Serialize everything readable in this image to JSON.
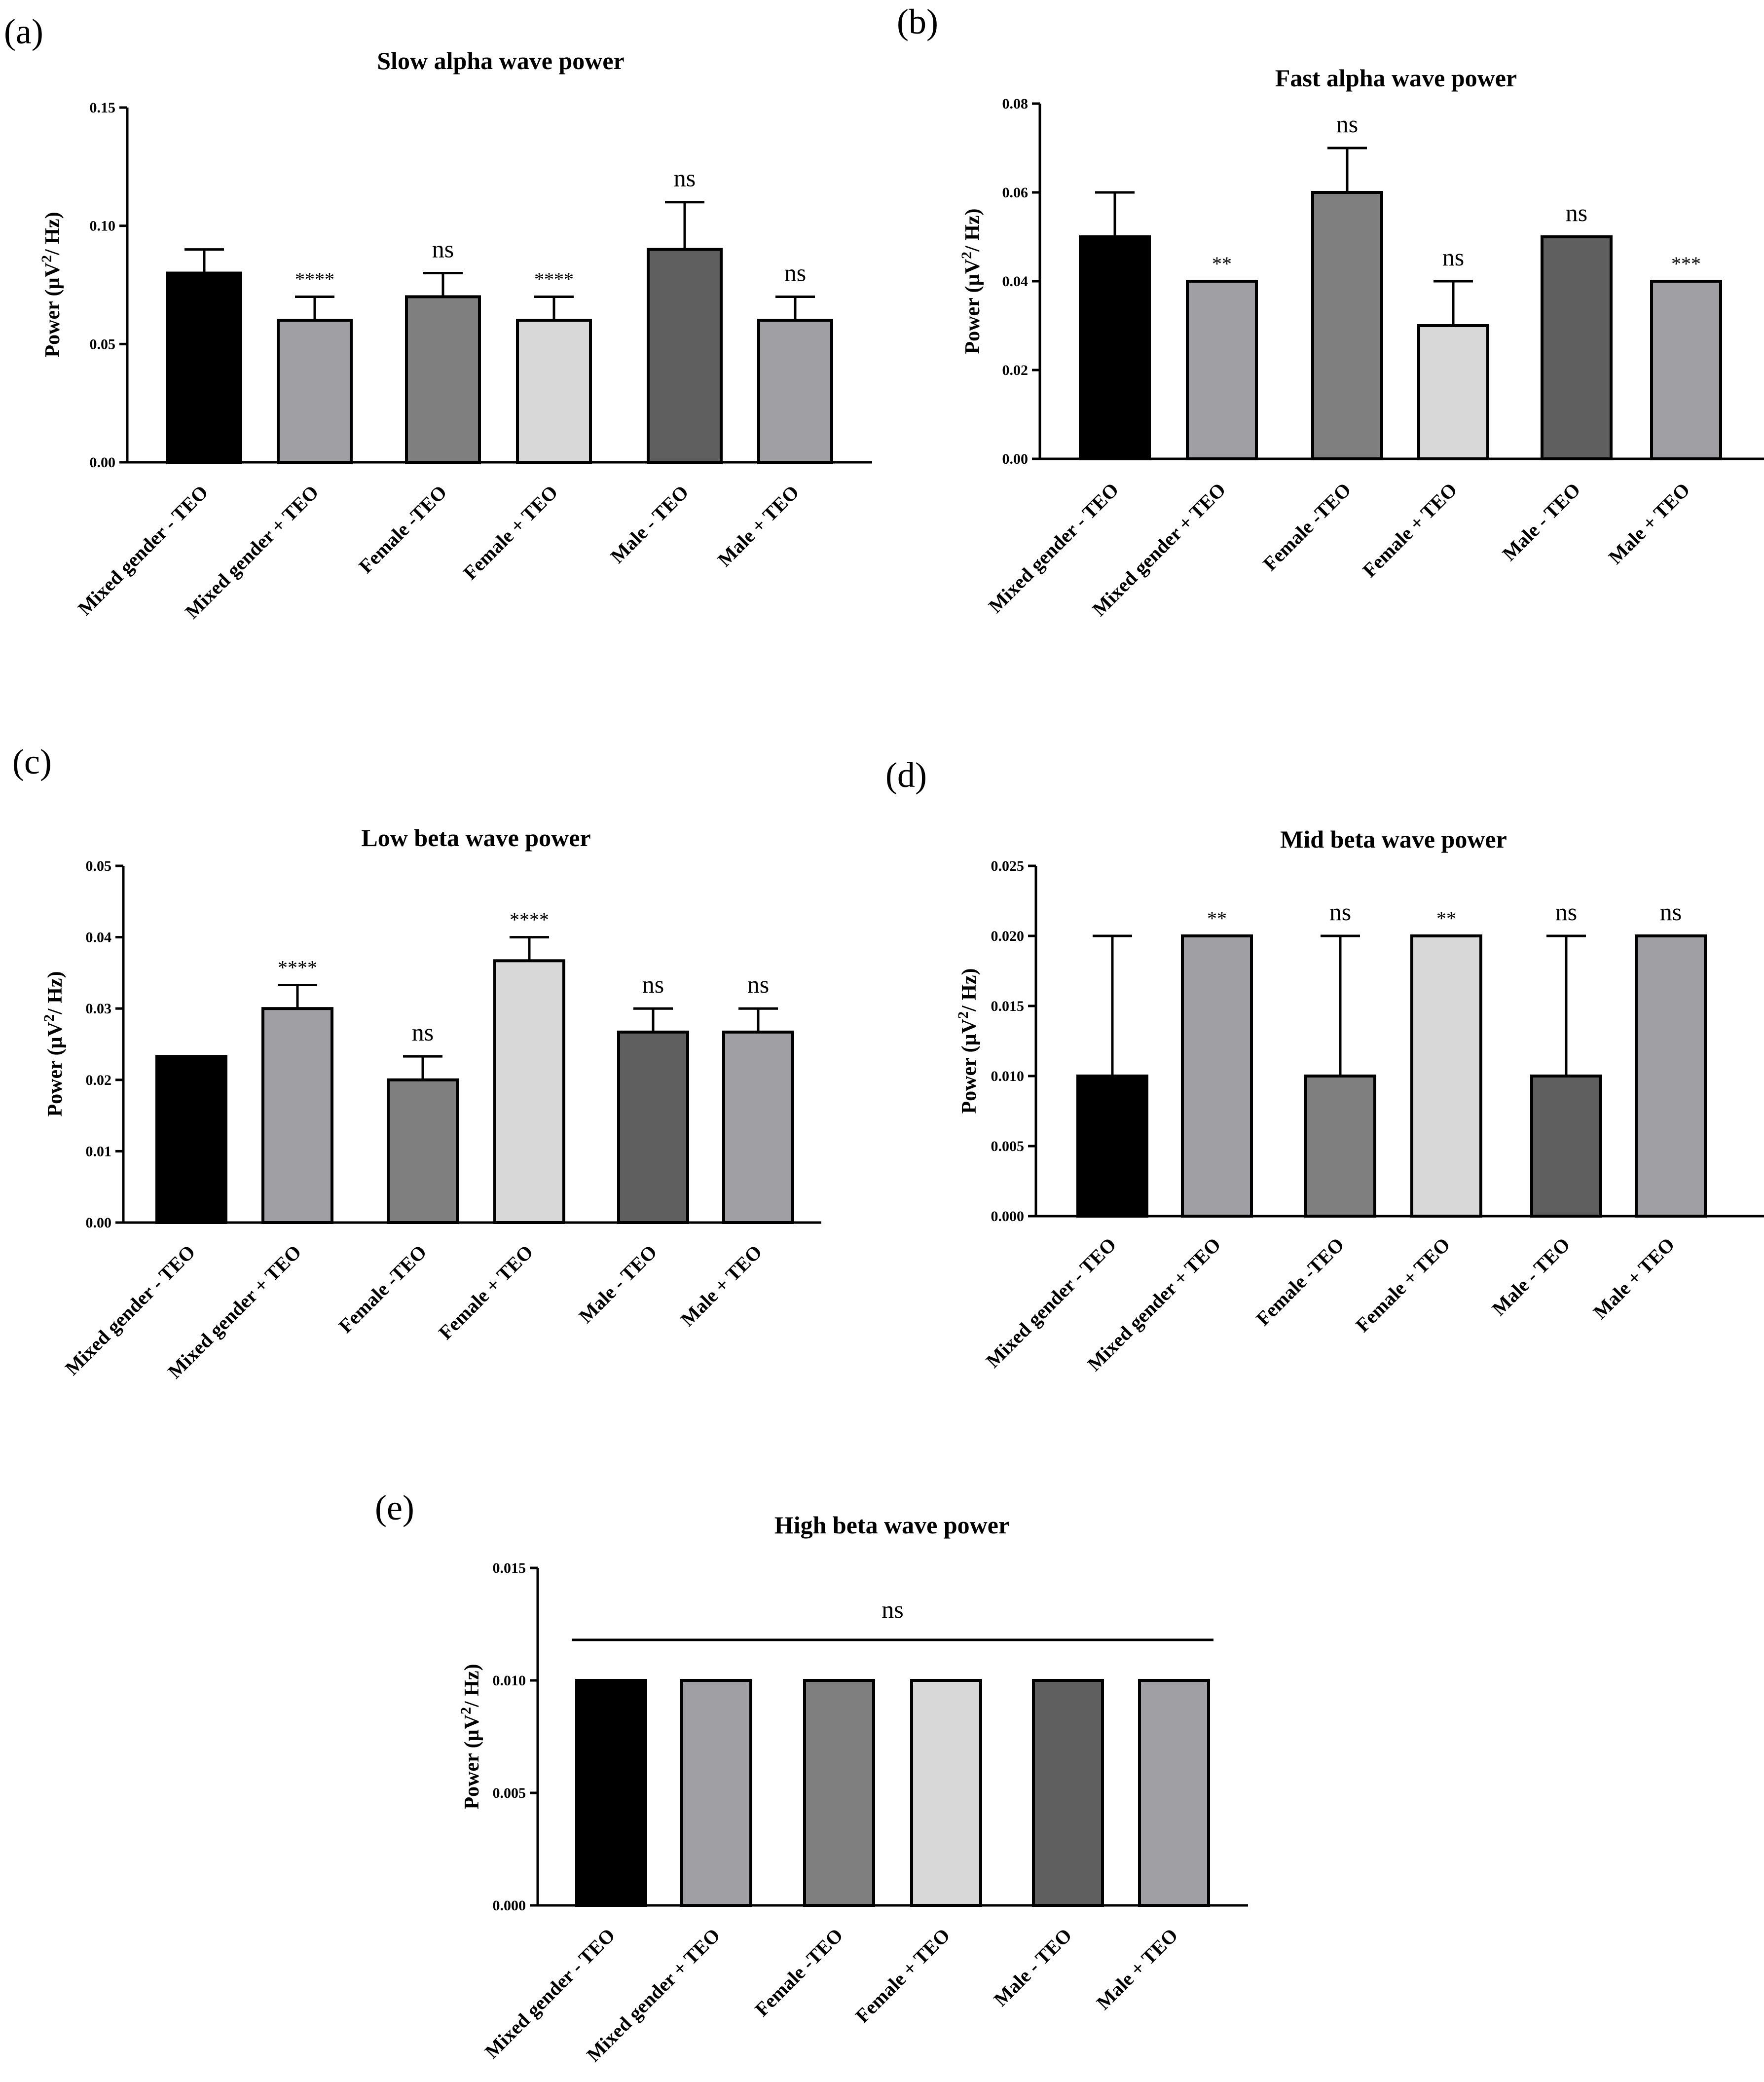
{
  "chart_data": [
    {
      "panel": "(a)",
      "type": "bar",
      "title": "Slow alpha wave power",
      "ylabel": "Power (µV²/ Hz)",
      "ylim": [
        0,
        0.15
      ],
      "yticks": [
        "0.00",
        "0.05",
        "0.10",
        "0.15"
      ],
      "categories": [
        "Mixed gender - TEO",
        "Mixed gender + TEO",
        "Female -TEO",
        "Female + TEO",
        "Male - TEO",
        "Male + TEO"
      ],
      "values": [
        0.08,
        0.06,
        0.07,
        0.06,
        0.09,
        0.06
      ],
      "errors": [
        0.01,
        0.01,
        0.01,
        0.01,
        0.02,
        0.01
      ],
      "significance": [
        "",
        "****",
        "ns",
        "****",
        "ns",
        "ns"
      ],
      "colors": [
        "#000000",
        "#a0a0a4",
        "#7f7f7f",
        "#d8d8d8",
        "#5f5f5f",
        "#a0a0a4"
      ]
    },
    {
      "panel": "(b)",
      "type": "bar",
      "title": "Fast alpha wave power",
      "ylabel": "Power (µV²/ Hz)",
      "ylim": [
        0,
        0.08
      ],
      "yticks": [
        "0.00",
        "0.02",
        "0.04",
        "0.06",
        "0.08"
      ],
      "categories": [
        "Mixed gender - TEO",
        "Mixed gender + TEO",
        "Female -TEO",
        "Female + TEO",
        "Male - TEO",
        "Male + TEO"
      ],
      "values": [
        0.05,
        0.04,
        0.06,
        0.03,
        0.05,
        0.04
      ],
      "errors": [
        0.01,
        0,
        0.01,
        0.01,
        0,
        0
      ],
      "significance": [
        "",
        "**",
        "ns",
        "ns",
        "ns",
        "***"
      ],
      "colors": [
        "#000000",
        "#a0a0a4",
        "#7f7f7f",
        "#d8d8d8",
        "#5f5f5f",
        "#a0a0a4"
      ]
    },
    {
      "panel": "(c)",
      "type": "bar",
      "title": "Low beta wave power",
      "ylabel": "Power (µV²/ Hz)",
      "ylim": [
        0,
        0.05
      ],
      "yticks": [
        "0.00",
        "0.01",
        "0.02",
        "0.03",
        "0.04",
        "0.05"
      ],
      "categories": [
        "Mixed gender - TEO",
        "Mixed gender + TEO",
        "Female -TEO",
        "Female + TEO",
        "Male - TEO",
        "Male + TEO"
      ],
      "values": [
        0.0233,
        0.03,
        0.02,
        0.0367,
        0.0267,
        0.0267
      ],
      "errors": [
        0,
        0.0033,
        0.0033,
        0.0033,
        0.0033,
        0.0033
      ],
      "significance": [
        "",
        "****",
        "ns",
        "****",
        "ns",
        "ns"
      ],
      "colors": [
        "#000000",
        "#a0a0a4",
        "#7f7f7f",
        "#d8d8d8",
        "#5f5f5f",
        "#a0a0a4"
      ]
    },
    {
      "panel": "(d)",
      "type": "bar",
      "title": "Mid beta wave power",
      "ylabel": "Power (µV²/ Hz)",
      "ylim": [
        0,
        0.025
      ],
      "yticks": [
        "0.000",
        "0.005",
        "0.010",
        "0.015",
        "0.020",
        "0.025"
      ],
      "categories": [
        "Mixed gender - TEO",
        "Mixed gender + TEO",
        "Female -TEO",
        "Female + TEO",
        "Male - TEO",
        "Male + TEO"
      ],
      "values": [
        0.01,
        0.02,
        0.01,
        0.02,
        0.01,
        0.02
      ],
      "errors": [
        0.01,
        0,
        0.01,
        0,
        0.01,
        0
      ],
      "significance": [
        "",
        "**",
        "ns",
        "**",
        "ns",
        "ns"
      ],
      "colors": [
        "#000000",
        "#a0a0a4",
        "#7f7f7f",
        "#d8d8d8",
        "#5f5f5f",
        "#a0a0a4"
      ]
    },
    {
      "panel": "(e)",
      "type": "bar",
      "title": "High beta wave power",
      "ylabel": "Power (µV²/ Hz)",
      "ylim": [
        0,
        0.015
      ],
      "yticks": [
        "0.000",
        "0.005",
        "0.010",
        "0.015"
      ],
      "categories": [
        "Mixed gender - TEO",
        "Mixed gender + TEO",
        "Female -TEO",
        "Female + TEO",
        "Male - TEO",
        "Male + TEO"
      ],
      "values": [
        0.01,
        0.01,
        0.01,
        0.01,
        0.01,
        0.01
      ],
      "errors": [
        0,
        0,
        0,
        0,
        0,
        0
      ],
      "significance": [
        "",
        "",
        "",
        "",
        "",
        ""
      ],
      "overall_significance": "ns",
      "colors": [
        "#000000",
        "#a0a0a4",
        "#7f7f7f",
        "#d8d8d8",
        "#5f5f5f",
        "#a0a0a4"
      ]
    }
  ]
}
